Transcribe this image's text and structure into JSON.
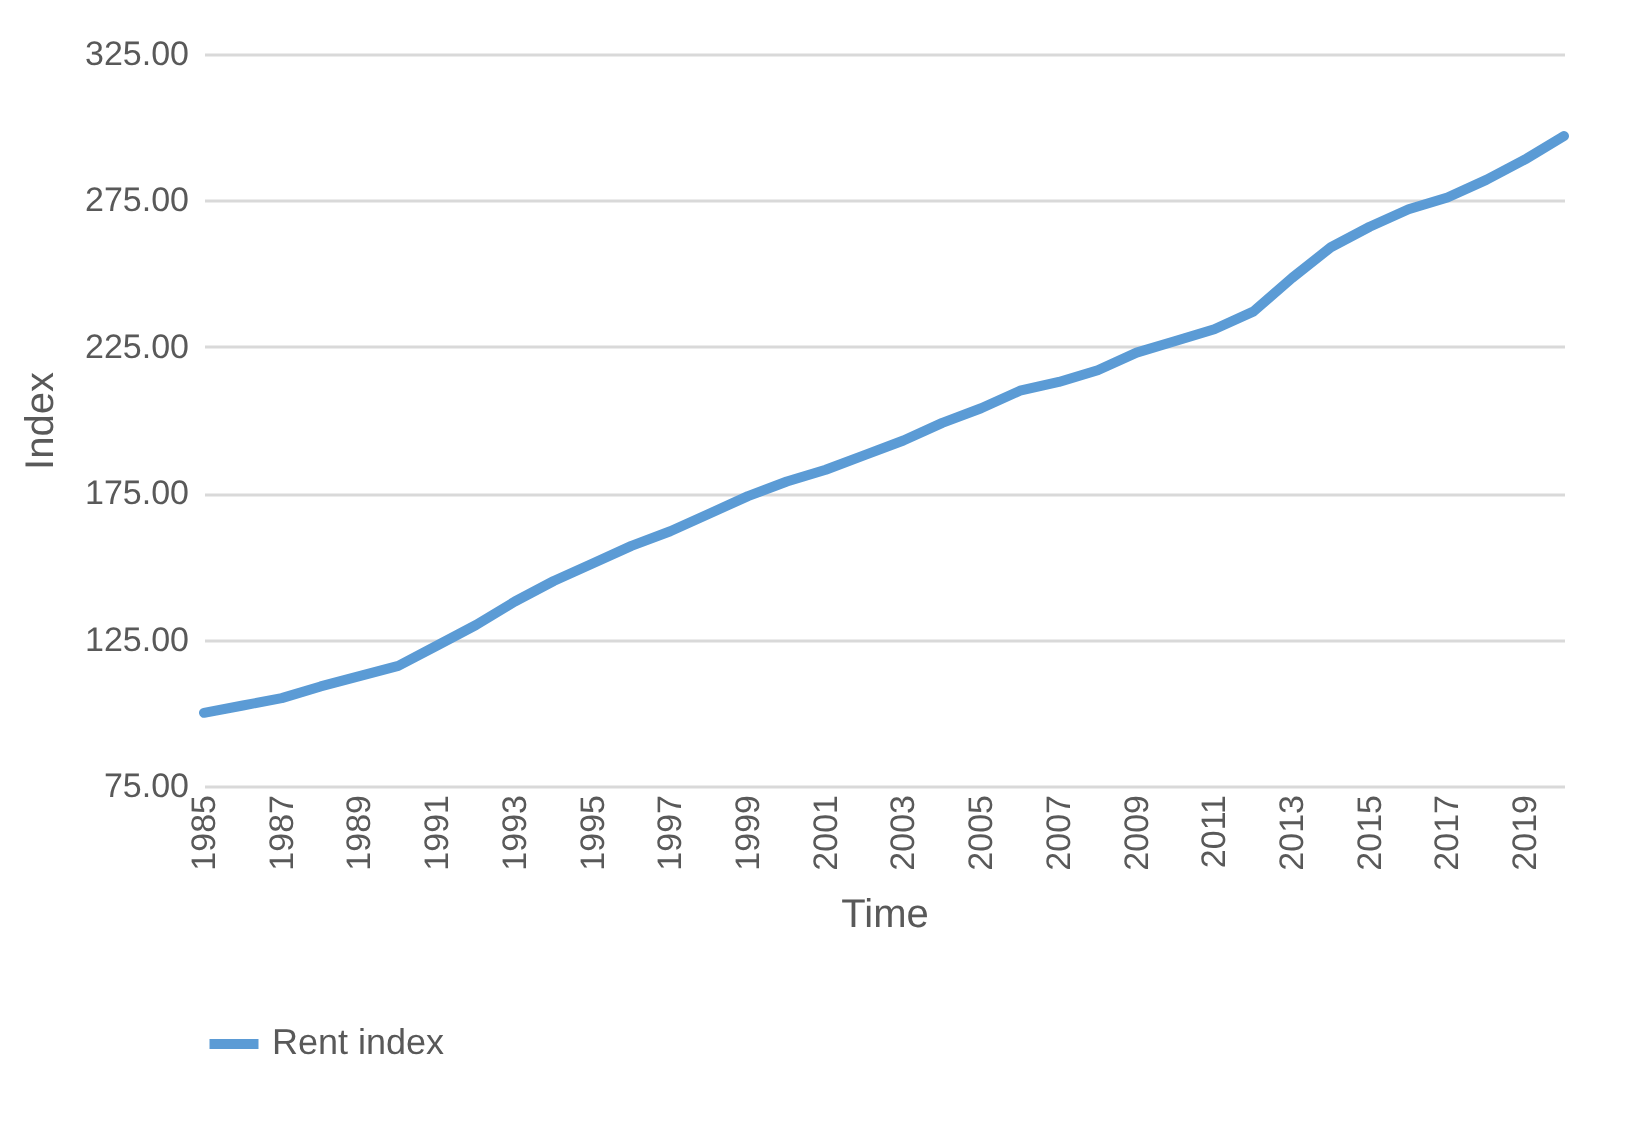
{
  "chart_data": {
    "type": "line",
    "xlabel": "Time",
    "ylabel": "Index",
    "categories": [
      "1985",
      null,
      "1987",
      null,
      "1989",
      null,
      "1991",
      null,
      "1993",
      null,
      "1995",
      null,
      "1997",
      null,
      "1999",
      null,
      "2001",
      null,
      "2003",
      null,
      "2005",
      null,
      "2007",
      null,
      "2009",
      null,
      "2011",
      null,
      "2013",
      null,
      "2015",
      null,
      "2017",
      null,
      "2019",
      null
    ],
    "series": [
      {
        "name": "Rent index",
        "color": "#5b9bd5",
        "values": [
          100,
          102.5,
          105,
          109,
          112.5,
          116,
          123,
          130,
          138,
          145,
          151,
          157,
          162,
          168,
          174,
          179,
          183,
          188,
          193,
          199,
          204,
          210,
          213,
          217,
          223,
          227,
          231,
          237,
          248.5,
          259,
          266,
          272,
          276,
          282,
          289,
          297
        ]
      }
    ],
    "ylim": [
      75,
      325
    ],
    "yticks": [
      {
        "value": 75,
        "label": "75.00"
      },
      {
        "value": 125,
        "label": "125.00"
      },
      {
        "value": 175,
        "label": "175.00"
      },
      {
        "value": 225,
        "label": "225.00"
      },
      {
        "value": 275,
        "label": "275.00"
      },
      {
        "value": 325,
        "label": "325.00"
      }
    ],
    "grid": "y",
    "legend": "bottom",
    "marker": "none",
    "line_style": "solid"
  }
}
